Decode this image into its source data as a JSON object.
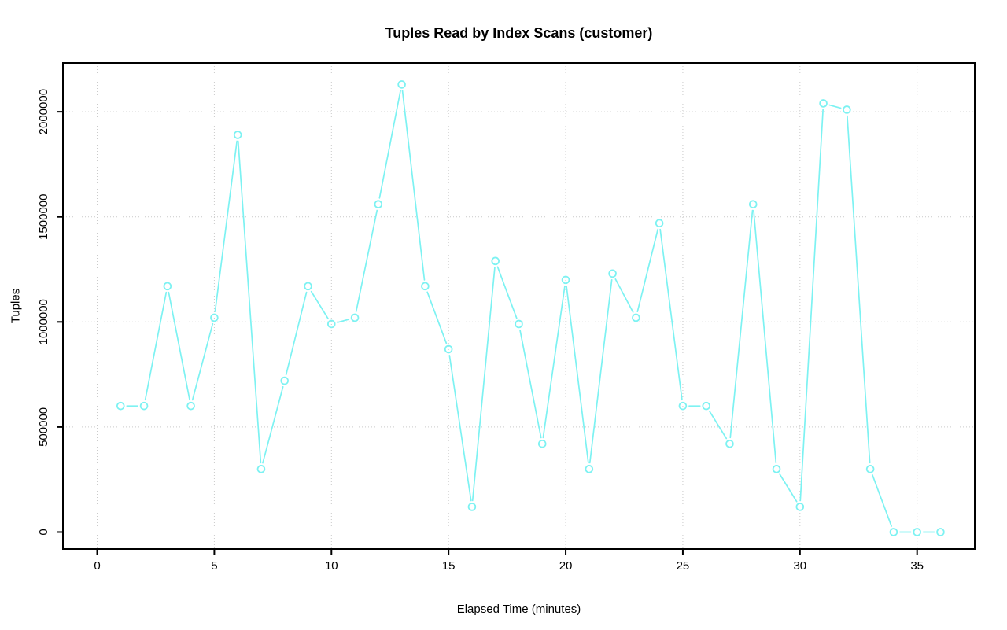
{
  "chart_data": {
    "type": "line",
    "title": "Tuples Read by Index Scans (customer)",
    "xlabel": "Elapsed Time (minutes)",
    "ylabel": "Tuples",
    "x": [
      1,
      2,
      3,
      4,
      5,
      6,
      7,
      8,
      9,
      10,
      11,
      12,
      13,
      14,
      15,
      16,
      17,
      18,
      19,
      20,
      21,
      22,
      23,
      24,
      25,
      26,
      27,
      28,
      29,
      30,
      31,
      32,
      33,
      34,
      35,
      36
    ],
    "values": [
      600000,
      600000,
      1170000,
      600000,
      1020000,
      1890000,
      300000,
      720000,
      1170000,
      990000,
      1020000,
      1560000,
      2130000,
      1170000,
      870000,
      120000,
      1290000,
      990000,
      420000,
      1200000,
      300000,
      1230000,
      1020000,
      1470000,
      600000,
      600000,
      420000,
      1560000,
      300000,
      120000,
      2040000,
      2010000,
      300000,
      0,
      0,
      0
    ],
    "xticks": [
      "0",
      "5",
      "10",
      "15",
      "20",
      "25",
      "30",
      "35"
    ],
    "xtick_values": [
      0,
      5,
      10,
      15,
      20,
      25,
      30,
      35
    ],
    "yticks": [
      "0",
      "500000",
      "1000000",
      "1500000",
      "2000000"
    ],
    "ytick_values": [
      0,
      500000,
      1000000,
      1500000,
      2000000
    ],
    "xlim": [
      0,
      36
    ],
    "ylim": [
      0,
      2130000
    ],
    "grid": true,
    "legend": null,
    "style": {
      "line_color": "#7df2f2",
      "grid_color": "#c9c9c9",
      "axis_color": "#000000",
      "marker": "open-circle",
      "line_type": "b"
    }
  }
}
